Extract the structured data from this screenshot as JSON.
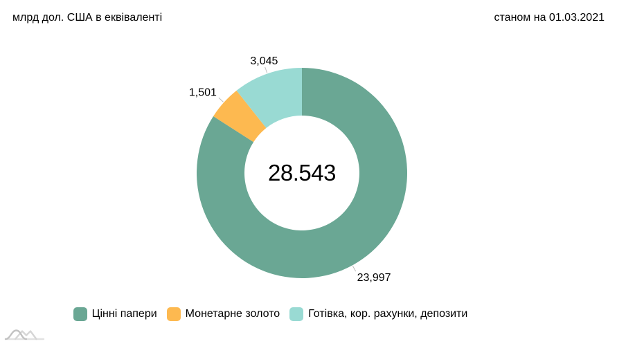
{
  "chart_data": {
    "type": "pie",
    "variant": "donut",
    "title": "млрд дол. США в еквіваленті",
    "annotation": "станом на 01.03.2021",
    "center_label": "28.543",
    "total": 28543,
    "start_angle_deg": 0,
    "direction": "clockwise",
    "legend_position": "bottom",
    "slices": [
      {
        "label": "Цінні папери",
        "value": 23997,
        "display_value": "23,997",
        "color": "#6AA794"
      },
      {
        "label": "Монетарне золото",
        "value": 1501,
        "display_value": "1,501",
        "color": "#FDB950"
      },
      {
        "label": "Готівка, кор. рахунки, депозити",
        "value": 3045,
        "display_value": "3,045",
        "color": "#99DAD3"
      }
    ],
    "label_color": "#000000",
    "leader_line_color": "#BBBBBB",
    "background": "#FFFFFF"
  },
  "watermark": {
    "icon": "amcharts-logo"
  }
}
